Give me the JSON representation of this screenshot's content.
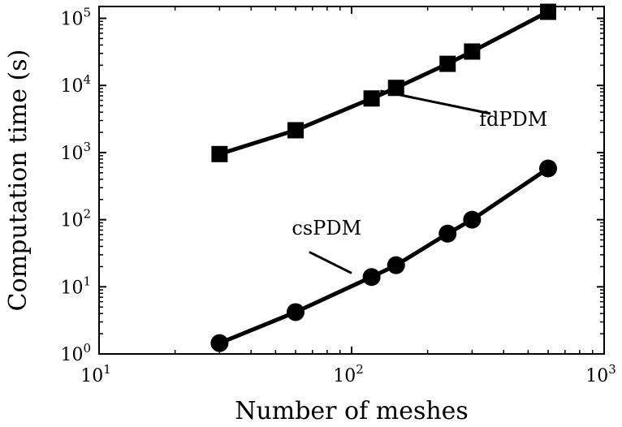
{
  "chart_data": {
    "type": "line",
    "xscale": "log",
    "yscale": "log",
    "xlabel": "Number of meshes",
    "ylabel": "Computation time (s)",
    "xlim": [
      10,
      1000
    ],
    "ylim": [
      1,
      150000
    ],
    "grid": false,
    "legend": "none",
    "xticks": [
      {
        "value": 10,
        "base": "10",
        "exp": "1"
      },
      {
        "value": 100,
        "base": "10",
        "exp": "2"
      },
      {
        "value": 1000,
        "base": "10",
        "exp": "3"
      }
    ],
    "yticks": [
      {
        "value": 1,
        "base": "10",
        "exp": "0"
      },
      {
        "value": 10,
        "base": "10",
        "exp": "1"
      },
      {
        "value": 100,
        "base": "10",
        "exp": "2"
      },
      {
        "value": 1000,
        "base": "10",
        "exp": "3"
      },
      {
        "value": 10000,
        "base": "10",
        "exp": "4"
      },
      {
        "value": 100000,
        "base": "10",
        "exp": "5"
      }
    ],
    "series": [
      {
        "name": "fdPDM",
        "marker": "square",
        "color": "#000000",
        "x": [
          30,
          60,
          120,
          150,
          240,
          300,
          600
        ],
        "y": [
          950,
          2150,
          6400,
          9200,
          21000,
          32000,
          125000
        ]
      },
      {
        "name": "csPDM",
        "marker": "circle",
        "color": "#000000",
        "x": [
          30,
          60,
          120,
          150,
          240,
          300,
          600
        ],
        "y": [
          1.45,
          4.2,
          14,
          21,
          62,
          100,
          580
        ]
      }
    ],
    "annotations": [
      {
        "text": "fdPDM",
        "series": "fdPDM",
        "label_x": 320,
        "label_y": 2500,
        "line_from": [
          355,
          3800
        ],
        "line_to": [
          130,
          8300
        ]
      },
      {
        "text": "csPDM",
        "series": "csPDM",
        "label_x": 58,
        "label_y": 60,
        "line_from": [
          68,
          33
        ],
        "line_to": [
          100,
          16
        ]
      }
    ]
  }
}
